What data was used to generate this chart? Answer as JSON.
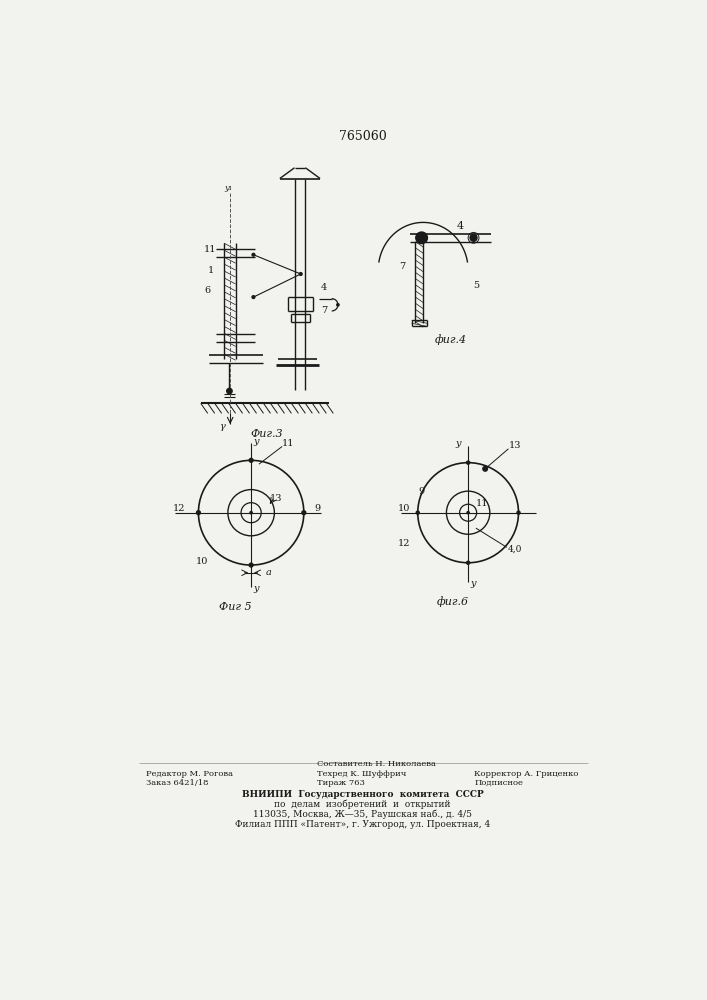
{
  "patent_number": "765060",
  "background_color": "#f2f2ee",
  "line_color": "#1a1a1a",
  "fig3_caption": "Фиг.3",
  "fig4_caption": "фиг.4",
  "fig5_caption": "Фиг 5",
  "fig6_caption": "фиг.6",
  "footer_left_line1": "Редактор М. Рогова",
  "footer_left_line2": "Заказ 6421/18",
  "footer_mid_line1": "Составитель Н. Николаева",
  "footer_mid_line2": "Техред К. Шуффрич",
  "footer_mid_line3": "Тираж 763",
  "footer_right_line1": "Корректор А. Гриценко",
  "footer_right_line2": "Подписное",
  "footer_vniiipi_line1": "ВНИИПИ  Государственного  комитета  СССР",
  "footer_vniiipi_line2": "по  делам  изобретений  и  открытий",
  "footer_vniiipi_line3": "113035, Москва, Ж—35, Раушская наб., д. 4/5",
  "footer_vniiipi_line4": "Филиал ППП «Патент», г. Ужгород, ул. Проектная, 4"
}
